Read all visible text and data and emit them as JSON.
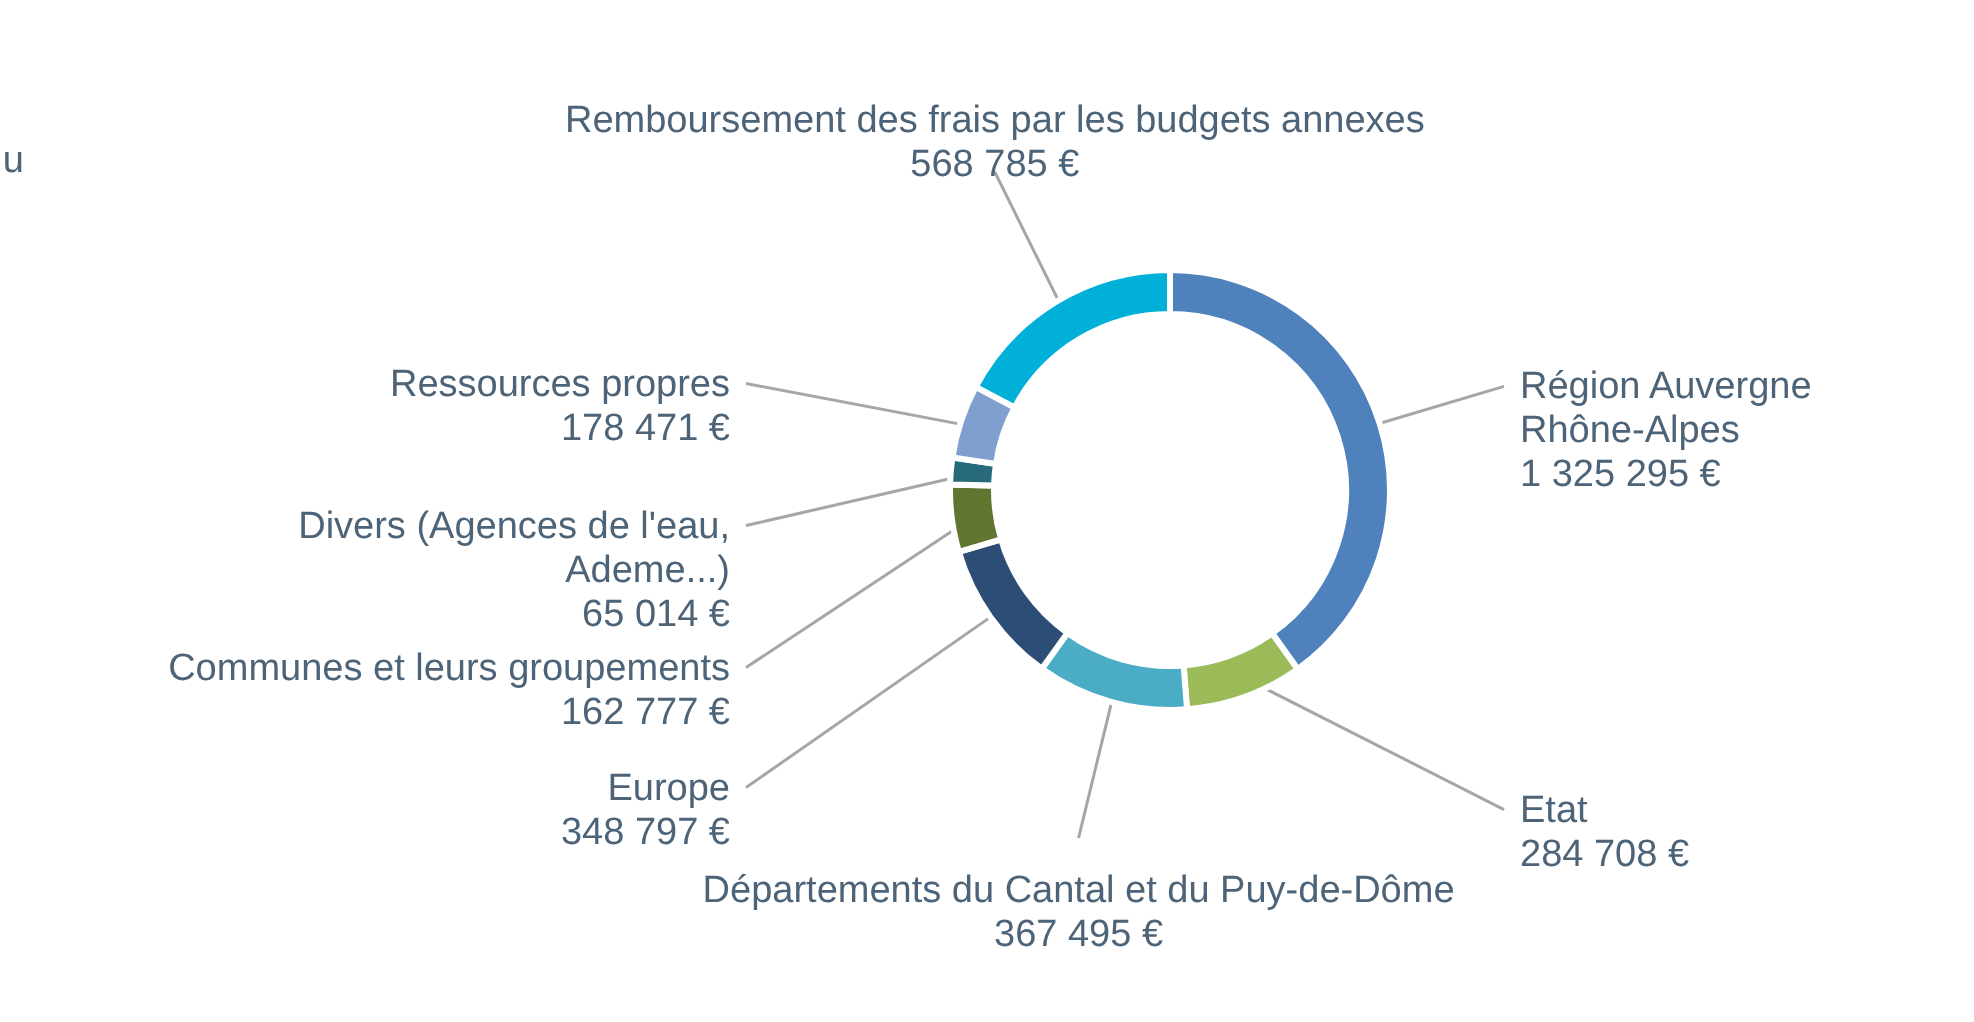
{
  "chart_data": {
    "type": "donut",
    "categories": [
      "Région Auvergne\nRhône-Alpes",
      "Etat",
      "Départements du Cantal et du Puy-de-Dôme",
      "Europe",
      "Communes et leurs groupements",
      "Divers (Agences de l'eau,\nAdeme...)",
      "Ressources propres",
      "Remboursement des frais par les budgets annexes"
    ],
    "values": [
      1325295,
      284708,
      367495,
      348797,
      162777,
      65014,
      178471,
      568785
    ],
    "value_labels": [
      "1 325 295 €",
      "284 708 €",
      "367 495 €",
      "348 797 €",
      "162 777 €",
      "65 014 €",
      "178 471 €",
      "568 785 €"
    ],
    "colors": [
      "#4f81bd",
      "#9bbb59",
      "#4bacc6",
      "#2c4d75",
      "#5f7530",
      "#276a7c",
      "#7f9fcf",
      "#00b0d8"
    ],
    "annotations": [
      "u"
    ]
  }
}
